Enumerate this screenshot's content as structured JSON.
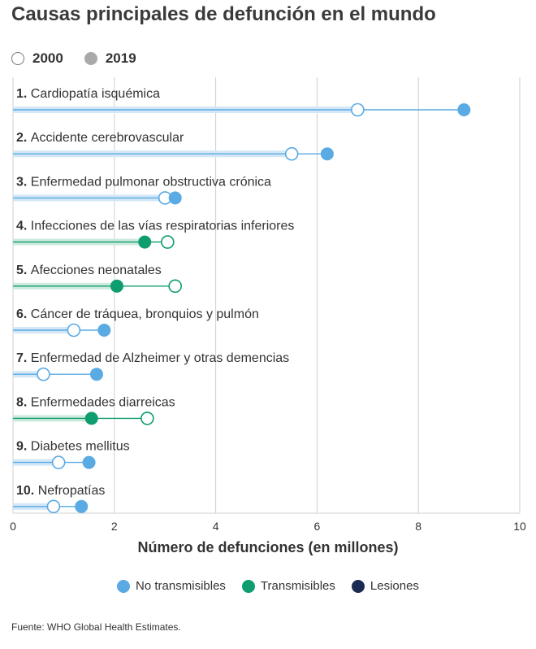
{
  "chart_data": {
    "type": "dumbbell",
    "title": "Causas principales de defunción en el mundo",
    "xlabel": "Número de defunciones (en millones)",
    "xlim": [
      0,
      10
    ],
    "xticks": [
      "0",
      "2",
      "4",
      "6",
      "8",
      "10"
    ],
    "xtick_values": [
      0,
      2,
      4,
      6,
      8,
      10
    ],
    "year_legend": [
      {
        "label": "2000",
        "style": "open"
      },
      {
        "label": "2019",
        "style": "filled"
      }
    ],
    "category_legend": [
      {
        "label": "No transmisibles",
        "color": "#5aaae3"
      },
      {
        "label": "Transmisibles",
        "color": "#0e9d6e"
      },
      {
        "label": "Lesiones",
        "color": "#1b2a52"
      }
    ],
    "category_colors": {
      "No transmisibles": {
        "main": "#5aaae3",
        "band": "#d3e7f7"
      },
      "Transmisibles": {
        "main": "#0e9d6e",
        "band": "#cdeadd"
      }
    },
    "rows": [
      {
        "rank": "1.",
        "label": "Cardiopatía isquémica",
        "category": "No transmisibles",
        "v2000": 6.8,
        "v2019": 8.9
      },
      {
        "rank": "2.",
        "label": "Accidente cerebrovascular",
        "category": "No transmisibles",
        "v2000": 5.5,
        "v2019": 6.2
      },
      {
        "rank": "3.",
        "label": "Enfermedad pulmonar obstructiva crónica",
        "category": "No transmisibles",
        "v2000": 3.0,
        "v2019": 3.2
      },
      {
        "rank": "4.",
        "label": "Infecciones de las vías respiratorias inferiores",
        "category": "Transmisibles",
        "v2000": 3.05,
        "v2019": 2.6
      },
      {
        "rank": "5.",
        "label": "Afecciones neonatales",
        "category": "Transmisibles",
        "v2000": 3.2,
        "v2019": 2.05
      },
      {
        "rank": "6.",
        "label": "Cáncer de tráquea, bronquios y pulmón",
        "category": "No transmisibles",
        "v2000": 1.2,
        "v2019": 1.8
      },
      {
        "rank": "7.",
        "label": "Enfermedad de Alzheimer y otras demencias",
        "category": "No transmisibles",
        "v2000": 0.6,
        "v2019": 1.65
      },
      {
        "rank": "8.",
        "label": "Enfermedades diarreicas",
        "category": "Transmisibles",
        "v2000": 2.65,
        "v2019": 1.55
      },
      {
        "rank": "9.",
        "label": "Diabetes mellitus",
        "category": "No transmisibles",
        "v2000": 0.9,
        "v2019": 1.5
      },
      {
        "rank": "10.",
        "label": "Nefropatías",
        "category": "No transmisibles",
        "v2000": 0.8,
        "v2019": 1.35
      }
    ],
    "source": "Fuente: WHO Global Health Estimates."
  }
}
